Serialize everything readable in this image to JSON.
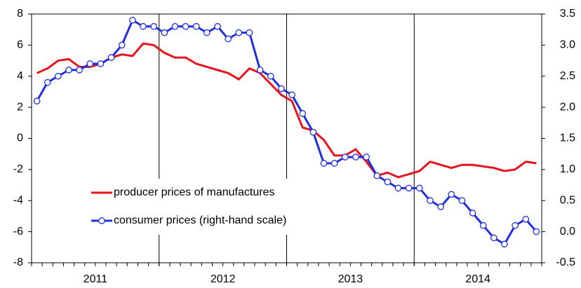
{
  "chart_data": {
    "type": "line",
    "periods": [
      "2011",
      "2012",
      "2013",
      "2014"
    ],
    "series": [
      {
        "name": "producer prices of manufactures",
        "color": "#e8141b",
        "axis": "y",
        "marker": false,
        "values": [
          4.2,
          4.5,
          5.0,
          5.1,
          4.6,
          4.6,
          4.8,
          5.2,
          5.4,
          5.3,
          6.1,
          6.0,
          5.5,
          5.2,
          5.2,
          4.8,
          4.6,
          4.4,
          4.2,
          3.8,
          4.5,
          4.2,
          3.5,
          2.8,
          2.4,
          0.7,
          0.5,
          -0.1,
          -1.1,
          -1.1,
          -0.7,
          -1.5,
          -2.4,
          -2.2,
          -2.5,
          -2.3,
          -2.1,
          -1.5,
          -1.7,
          -1.9,
          -1.7,
          -1.7,
          -1.8,
          -1.9,
          -2.1,
          -2.0,
          -1.5,
          -1.6
        ]
      },
      {
        "name": "consumer prices (right-hand scale)",
        "color": "#1f2fe0",
        "axis": "y2",
        "marker": true,
        "values": [
          2.1,
          2.4,
          2.5,
          2.6,
          2.6,
          2.7,
          2.7,
          2.8,
          3.0,
          3.4,
          3.3,
          3.3,
          3.2,
          3.3,
          3.3,
          3.3,
          3.2,
          3.3,
          3.1,
          3.2,
          3.2,
          2.6,
          2.5,
          2.3,
          2.2,
          1.9,
          1.6,
          1.1,
          1.1,
          1.2,
          1.2,
          1.2,
          0.9,
          0.8,
          0.7,
          0.7,
          0.7,
          0.5,
          0.4,
          0.6,
          0.5,
          0.3,
          0.1,
          -0.1,
          -0.2,
          0.1,
          0.2,
          0.0
        ]
      }
    ],
    "ylim": [
      -8,
      8
    ],
    "yticks": [
      -8,
      -6,
      -4,
      -2,
      0,
      2,
      4,
      6,
      8
    ],
    "y2lim": [
      -0.5,
      3.5
    ],
    "y2ticks": [
      -0.5,
      {
        "value": 0,
        "label": "0.0"
      },
      0.5,
      {
        "value": 1,
        "label": "1.0"
      },
      1.5,
      {
        "value": 2,
        "label": "2.0"
      },
      2.5,
      {
        "value": 3,
        "label": "3.0"
      },
      3.5
    ]
  }
}
